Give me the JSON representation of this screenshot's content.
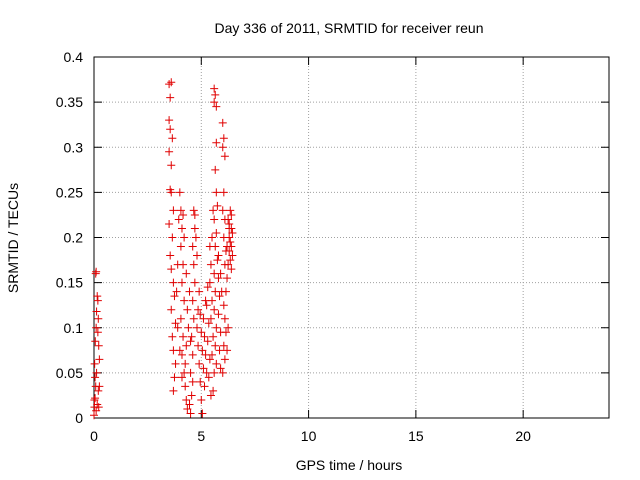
{
  "chart_data": {
    "type": "scatter",
    "title": "Day 336 of 2011, SRMTID for receiver reun",
    "xlabel": "GPS time / hours",
    "ylabel": "SRMTID / TECUs",
    "xlim": [
      0,
      24
    ],
    "ylim": [
      0,
      0.4
    ],
    "x_ticks": [
      "0",
      "5",
      "10",
      "15",
      "20"
    ],
    "x_tick_values": [
      0,
      5,
      10,
      15,
      20
    ],
    "y_ticks": [
      "0",
      "0.05",
      "0.1",
      "0.15",
      "0.2",
      "0.25",
      "0.3",
      "0.35",
      "0.4"
    ],
    "y_tick_values": [
      0,
      0.05,
      0.1,
      0.15,
      0.2,
      0.25,
      0.3,
      0.35,
      0.4
    ],
    "grid": true,
    "marker": "+",
    "color": "#e00000",
    "series": [
      {
        "points": [
          [
            0.0,
            0.003
          ],
          [
            0.02,
            0.012
          ],
          [
            0.05,
            0.022
          ],
          [
            0.08,
            0.035
          ],
          [
            0.03,
            0.06
          ],
          [
            0.06,
            0.085
          ],
          [
            0.1,
            0.1
          ],
          [
            0.12,
            0.118
          ],
          [
            0.15,
            0.135
          ],
          [
            0.08,
            0.16
          ],
          [
            0.1,
            0.162
          ],
          [
            0.18,
            0.13
          ],
          [
            0.2,
            0.11
          ],
          [
            0.22,
            0.08
          ],
          [
            0.25,
            0.065
          ],
          [
            0.2,
            0.03
          ],
          [
            0.15,
            0.015
          ],
          [
            0.1,
            0.008
          ],
          [
            0.22,
            0.012
          ],
          [
            0.25,
            0.035
          ],
          [
            0.05,
            0.045
          ],
          [
            0.12,
            0.05
          ],
          [
            0.18,
            0.095
          ],
          [
            0.02,
            0.02
          ],
          [
            3.5,
            0.37
          ],
          [
            3.55,
            0.355
          ],
          [
            3.6,
            0.372
          ],
          [
            3.5,
            0.33
          ],
          [
            3.55,
            0.32
          ],
          [
            3.65,
            0.31
          ],
          [
            3.5,
            0.295
          ],
          [
            3.6,
            0.28
          ],
          [
            3.55,
            0.253
          ],
          [
            3.6,
            0.25
          ],
          [
            3.7,
            0.23
          ],
          [
            3.5,
            0.215
          ],
          [
            3.65,
            0.2
          ],
          [
            3.55,
            0.18
          ],
          [
            3.6,
            0.165
          ],
          [
            3.7,
            0.15
          ],
          [
            3.75,
            0.135
          ],
          [
            3.6,
            0.12
          ],
          [
            3.8,
            0.105
          ],
          [
            3.65,
            0.09
          ],
          [
            3.7,
            0.075
          ],
          [
            3.8,
            0.06
          ],
          [
            3.75,
            0.045
          ],
          [
            3.7,
            0.03
          ],
          [
            3.9,
            0.1
          ],
          [
            3.85,
            0.14
          ],
          [
            3.9,
            0.17
          ],
          [
            3.95,
            0.22
          ],
          [
            4.0,
            0.25
          ],
          [
            4.05,
            0.23
          ],
          [
            4.1,
            0.21
          ],
          [
            4.05,
            0.19
          ],
          [
            4.15,
            0.17
          ],
          [
            4.1,
            0.15
          ],
          [
            4.2,
            0.13
          ],
          [
            4.05,
            0.11
          ],
          [
            4.15,
            0.09
          ],
          [
            4.1,
            0.07
          ],
          [
            4.2,
            0.05
          ],
          [
            4.25,
            0.035
          ],
          [
            4.3,
            0.02
          ],
          [
            4.35,
            0.01
          ],
          [
            4.25,
            0.06
          ],
          [
            4.3,
            0.08
          ],
          [
            4.4,
            0.1
          ],
          [
            4.35,
            0.12
          ],
          [
            4.2,
            0.2
          ],
          [
            4.15,
            0.225
          ],
          [
            4.3,
            0.16
          ],
          [
            4.0,
            0.075
          ],
          [
            4.1,
            0.045
          ],
          [
            4.45,
            0.14
          ],
          [
            4.5,
            0.005
          ],
          [
            4.55,
            0.025
          ],
          [
            4.5,
            0.05
          ],
          [
            4.6,
            0.07
          ],
          [
            4.55,
            0.09
          ],
          [
            4.65,
            0.11
          ],
          [
            4.6,
            0.13
          ],
          [
            4.7,
            0.15
          ],
          [
            4.65,
            0.17
          ],
          [
            4.6,
            0.19
          ],
          [
            4.7,
            0.21
          ],
          [
            4.65,
            0.23
          ],
          [
            4.7,
            0.225
          ],
          [
            4.75,
            0.2
          ],
          [
            4.8,
            0.18
          ],
          [
            4.6,
            0.04
          ],
          [
            4.45,
            0.015
          ],
          [
            4.5,
            0.085
          ],
          [
            4.8,
            0.1
          ],
          [
            4.85,
            0.08
          ],
          [
            4.9,
            0.06
          ],
          [
            4.95,
            0.04
          ],
          [
            5.0,
            0.02
          ],
          [
            5.05,
            0.005
          ],
          [
            4.85,
            0.12
          ],
          [
            4.9,
            0.14
          ],
          [
            4.95,
            0.115
          ],
          [
            5.0,
            0.095
          ],
          [
            5.05,
            0.075
          ],
          [
            5.1,
            0.055
          ],
          [
            5.15,
            0.035
          ],
          [
            5.2,
            0.13
          ],
          [
            5.1,
            0.11
          ],
          [
            5.15,
            0.09
          ],
          [
            5.2,
            0.07
          ],
          [
            5.25,
            0.05
          ],
          [
            5.3,
            0.145
          ],
          [
            5.25,
            0.125
          ],
          [
            5.35,
            0.105
          ],
          [
            5.3,
            0.085
          ],
          [
            5.4,
            0.065
          ],
          [
            5.35,
            0.045
          ],
          [
            5.45,
            0.025
          ],
          [
            5.4,
            0.15
          ],
          [
            5.5,
            0.13
          ],
          [
            5.45,
            0.11
          ],
          [
            5.55,
            0.09
          ],
          [
            5.5,
            0.07
          ],
          [
            5.6,
            0.05
          ],
          [
            5.55,
            0.03
          ],
          [
            5.6,
            0.16
          ],
          [
            5.65,
            0.14
          ],
          [
            5.6,
            0.12
          ],
          [
            5.7,
            0.1
          ],
          [
            5.65,
            0.08
          ],
          [
            5.7,
            0.06
          ],
          [
            5.4,
            0.19
          ],
          [
            5.5,
            0.2
          ],
          [
            5.55,
            0.23
          ],
          [
            5.45,
            0.17
          ],
          [
            5.6,
            0.365
          ],
          [
            5.65,
            0.358
          ],
          [
            5.7,
            0.345
          ],
          [
            5.6,
            0.35
          ],
          [
            5.7,
            0.305
          ],
          [
            5.65,
            0.275
          ],
          [
            5.7,
            0.25
          ],
          [
            5.75,
            0.235
          ],
          [
            5.6,
            0.22
          ],
          [
            5.7,
            0.205
          ],
          [
            5.65,
            0.19
          ],
          [
            5.75,
            0.175
          ],
          [
            5.8,
            0.155
          ],
          [
            5.85,
            0.135
          ],
          [
            5.8,
            0.115
          ],
          [
            5.9,
            0.095
          ],
          [
            5.85,
            0.075
          ],
          [
            5.9,
            0.055
          ],
          [
            5.95,
            0.14
          ],
          [
            5.9,
            0.16
          ],
          [
            5.8,
            0.18
          ],
          [
            6.0,
            0.327
          ],
          [
            6.05,
            0.31
          ],
          [
            6.0,
            0.3
          ],
          [
            6.1,
            0.29
          ],
          [
            6.05,
            0.25
          ],
          [
            6.0,
            0.23
          ],
          [
            6.1,
            0.22
          ],
          [
            6.05,
            0.2
          ],
          [
            6.15,
            0.185
          ],
          [
            6.1,
            0.17
          ],
          [
            6.2,
            0.155
          ],
          [
            6.15,
            0.14
          ],
          [
            6.05,
            0.125
          ],
          [
            6.1,
            0.11
          ],
          [
            6.15,
            0.095
          ],
          [
            6.05,
            0.08
          ],
          [
            6.1,
            0.065
          ],
          [
            6.0,
            0.05
          ],
          [
            6.2,
            0.075
          ],
          [
            6.25,
            0.1
          ],
          [
            6.3,
            0.21
          ],
          [
            6.35,
            0.23
          ],
          [
            6.3,
            0.2
          ],
          [
            6.4,
            0.19
          ],
          [
            6.35,
            0.175
          ],
          [
            6.4,
            0.165
          ],
          [
            6.45,
            0.18
          ],
          [
            6.3,
            0.215
          ],
          [
            6.4,
            0.225
          ],
          [
            6.35,
            0.195
          ],
          [
            6.25,
            0.17
          ],
          [
            6.45,
            0.205
          ],
          [
            6.3,
            0.185
          ],
          [
            6.4,
            0.21
          ],
          [
            6.2,
            0.19
          ],
          [
            6.25,
            0.22
          ]
        ]
      }
    ]
  }
}
